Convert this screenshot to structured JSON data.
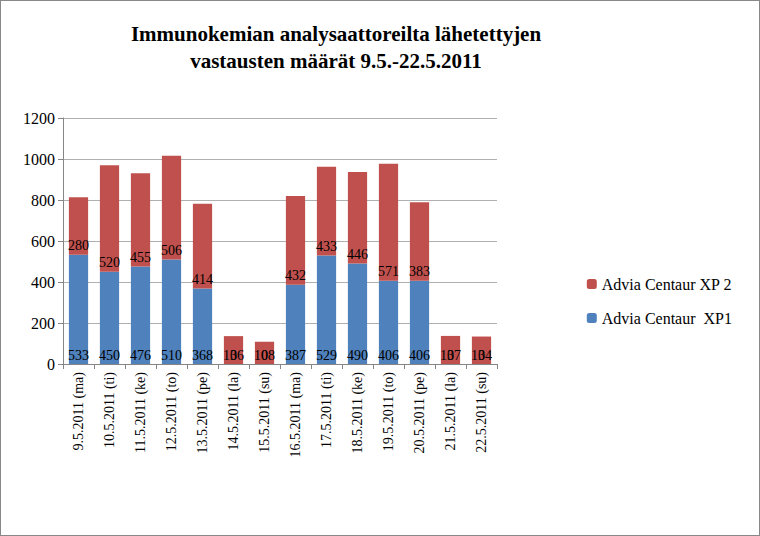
{
  "chart_data": {
    "type": "bar",
    "title": "Immunokemian analysaattoreilta lähetettyjen\nvastausten määrät 9.5.-22.5.2011",
    "categories": [
      "9.5.2011 (ma)",
      "10.5.2011 (ti)",
      "11.5.2011 (ke)",
      "12.5.2011 (to)",
      "13.5.2011 (pe)",
      "14.5.2011 (la)",
      "15.5.2011 (su)",
      "16.5.2011 (ma)",
      "17.5.2011 (ti)",
      "18.5.2011 (ke)",
      "19.5.2011 (to)",
      "20.5.2011 (pe)",
      "21.5.2011 (la)",
      "22.5.2011 (su)"
    ],
    "series": [
      {
        "name": "Advia Centaur  XP1",
        "color": "#4f81bd",
        "values": [
          533,
          450,
          476,
          510,
          368,
          0,
          0,
          387,
          529,
          490,
          406,
          406,
          0,
          0
        ]
      },
      {
        "name": "Advia Centaur XP 2",
        "color": "#c0504d",
        "values": [
          280,
          520,
          455,
          506,
          414,
          136,
          108,
          432,
          433,
          446,
          571,
          383,
          137,
          134
        ]
      }
    ],
    "stacked": true,
    "data_labels": true,
    "ylim": [
      0,
      1200
    ],
    "yticks": [
      0,
      200,
      400,
      600,
      800,
      1000,
      1200
    ],
    "grid": true,
    "legend": "right"
  }
}
